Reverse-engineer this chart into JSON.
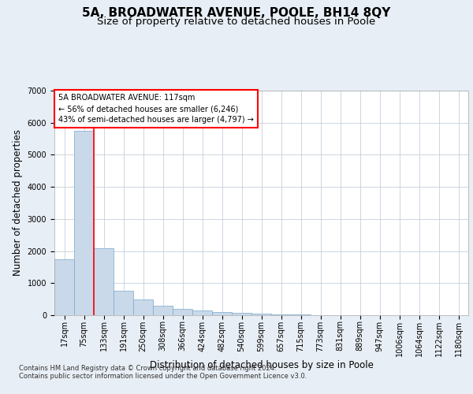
{
  "title_line1": "5A, BROADWATER AVENUE, POOLE, BH14 8QY",
  "title_line2": "Size of property relative to detached houses in Poole",
  "xlabel": "Distribution of detached houses by size in Poole",
  "ylabel": "Number of detached properties",
  "footnote": "Contains HM Land Registry data © Crown copyright and database right 2024.\nContains public sector information licensed under the Open Government Licence v3.0.",
  "bar_labels": [
    "17sqm",
    "75sqm",
    "133sqm",
    "191sqm",
    "250sqm",
    "308sqm",
    "366sqm",
    "424sqm",
    "482sqm",
    "540sqm",
    "599sqm",
    "657sqm",
    "715sqm",
    "773sqm",
    "831sqm",
    "889sqm",
    "947sqm",
    "1006sqm",
    "1064sqm",
    "1122sqm",
    "1180sqm"
  ],
  "bar_values": [
    1750,
    5750,
    2100,
    750,
    480,
    290,
    190,
    140,
    95,
    65,
    45,
    25,
    15,
    10,
    5,
    3,
    2,
    1,
    1,
    0,
    0
  ],
  "bar_color": "#c9d9ea",
  "bar_edgecolor": "#7aa8c8",
  "vline_x_index": 1.5,
  "annotation_text": "5A BROADWATER AVENUE: 117sqm\n← 56% of detached houses are smaller (6,246)\n43% of semi-detached houses are larger (4,797) →",
  "annotation_box_color": "white",
  "annotation_box_edgecolor": "red",
  "vline_color": "red",
  "ylim": [
    0,
    7000
  ],
  "yticks": [
    0,
    1000,
    2000,
    3000,
    4000,
    5000,
    6000,
    7000
  ],
  "background_color": "#e8eef5",
  "plot_background": "white",
  "title_fontsize": 11,
  "subtitle_fontsize": 9.5,
  "axis_label_fontsize": 8.5,
  "tick_fontsize": 7,
  "annot_fontsize": 7,
  "footnote_fontsize": 6
}
